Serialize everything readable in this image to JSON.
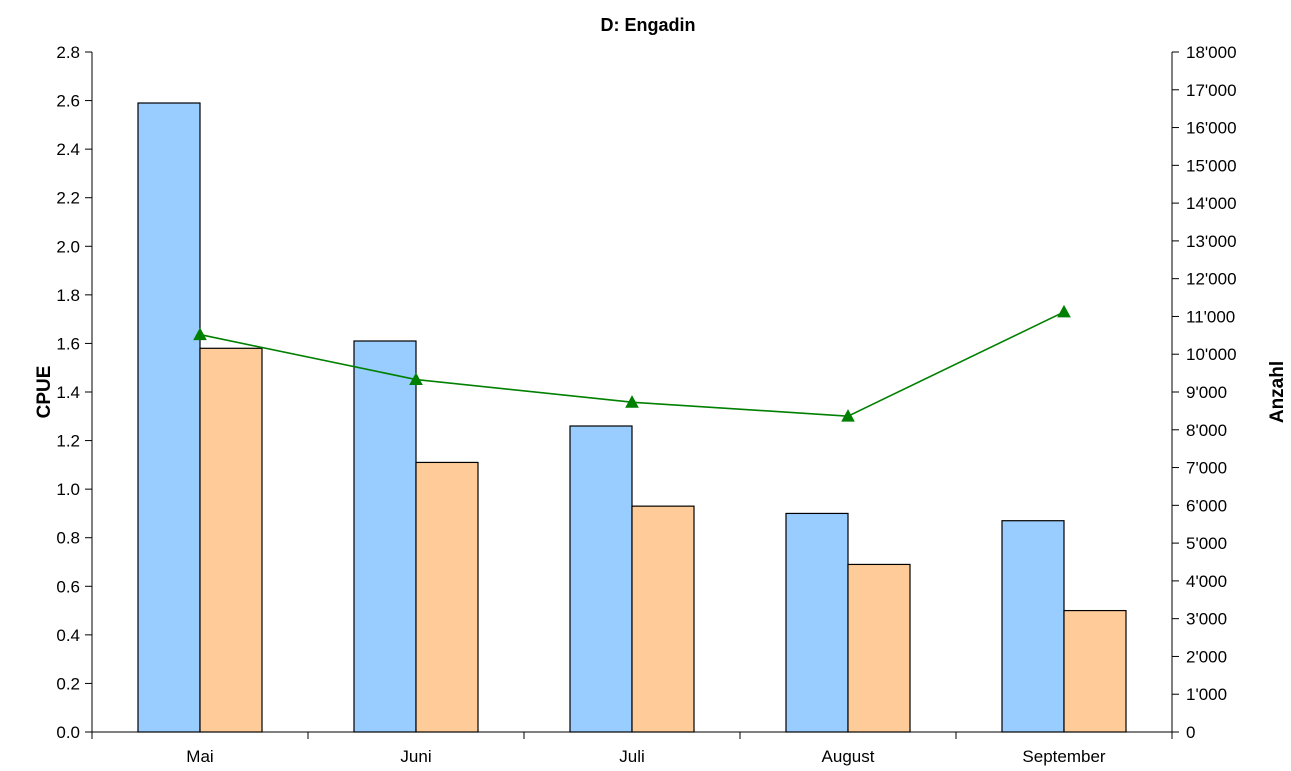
{
  "chart_data": {
    "type": "bar",
    "title": "D: Engadin",
    "ylabel": "CPUE",
    "y2label": "Anzahl",
    "categories": [
      "Mai",
      "Juni",
      "Juli",
      "August",
      "September"
    ],
    "ylim": [
      0,
      2.8
    ],
    "y2lim": [
      0,
      18000
    ],
    "yticks": [
      "0.0",
      "0.2",
      "0.4",
      "0.6",
      "0.8",
      "1.0",
      "1.2",
      "1.4",
      "1.6",
      "1.8",
      "2.0",
      "2.2",
      "2.4",
      "2.6",
      "2.8"
    ],
    "y2ticks": [
      "0",
      "1'000",
      "2'000",
      "3'000",
      "4'000",
      "5'000",
      "6'000",
      "7'000",
      "8'000",
      "9'000",
      "10'000",
      "11'000",
      "12'000",
      "13'000",
      "14'000",
      "15'000",
      "16'000",
      "17'000",
      "18'000"
    ],
    "series": [
      {
        "type": "bar",
        "axis": "left",
        "color": "#99ccff",
        "values": [
          2.59,
          1.61,
          1.26,
          0.9,
          0.87
        ]
      },
      {
        "type": "bar",
        "axis": "left",
        "color": "#ffcc99",
        "values": [
          1.58,
          1.11,
          0.93,
          0.69,
          0.5
        ]
      },
      {
        "type": "line",
        "axis": "right",
        "color": "#008000",
        "marker": "triangle",
        "values": [
          10520,
          9330,
          8730,
          8360,
          11120
        ]
      }
    ],
    "grid": false,
    "legend": "none"
  }
}
